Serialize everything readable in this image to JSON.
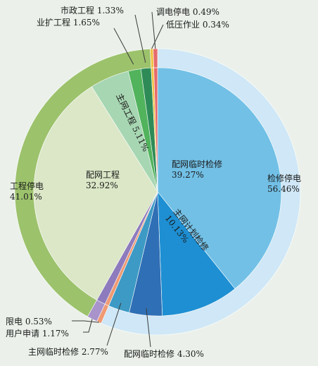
{
  "chart_data": [
    {
      "type": "pie",
      "ring": "outer",
      "slices": [
        {
          "label": "检修停电",
          "value": 56.46,
          "value_text": "56.46%",
          "color": "#cfe7f6"
        },
        {
          "label": "限电",
          "value": 0.53,
          "value_text": "0.53%",
          "color": "#ef9a73"
        },
        {
          "label": "用户申请",
          "value": 1.17,
          "value_text": "1.17%",
          "color": "#a893cb"
        },
        {
          "label": "工程停电",
          "value": 41.01,
          "value_text": "41.01%",
          "color": "#9cc26c"
        },
        {
          "label": "低压作业",
          "value": 0.34,
          "value_text": "0.34%",
          "color": "#efc347"
        },
        {
          "label": "调电停电",
          "value": 0.49,
          "value_text": "0.49%",
          "color": "#e66b6b"
        }
      ]
    },
    {
      "type": "pie",
      "ring": "inner",
      "slices": [
        {
          "label": "配网临时检修",
          "value": 39.27,
          "value_text": "39.27%",
          "color": "#72c0e6"
        },
        {
          "label": "主网计划检修",
          "value": 10.13,
          "value_text": "10.13%",
          "color": "#1e8fd2"
        },
        {
          "label": "配网临时检修",
          "value": 4.3,
          "value_text": "4.30%",
          "color": "#2f6fb5"
        },
        {
          "label": "主网临时检修",
          "value": 2.77,
          "value_text": "2.77%",
          "color": "#3d9ac5"
        },
        {
          "label": "限电",
          "value": 0.53,
          "value_text": "0.53%",
          "color": "#ef9a73"
        },
        {
          "label": "用户申请",
          "value": 1.17,
          "value_text": "1.17%",
          "color": "#8d7bbd"
        },
        {
          "label": "配网工程",
          "value": 32.92,
          "value_text": "32.92%",
          "color": "#dbe7c7"
        },
        {
          "label": "主网工程",
          "value": 5.11,
          "value_text": "5.11%",
          "color": "#a7d6b2"
        },
        {
          "label": "业扩工程",
          "value": 1.65,
          "value_text": "1.65%",
          "color": "#52b35d"
        },
        {
          "label": "市政工程",
          "value": 1.33,
          "value_text": "1.33%",
          "color": "#2e8b57"
        },
        {
          "label": "低压作业",
          "value": 0.34,
          "value_text": "0.34%",
          "color": "#efc347"
        },
        {
          "label": "调电停电",
          "value": 0.49,
          "value_text": "0.49%",
          "color": "#e66b6b"
        }
      ]
    }
  ]
}
